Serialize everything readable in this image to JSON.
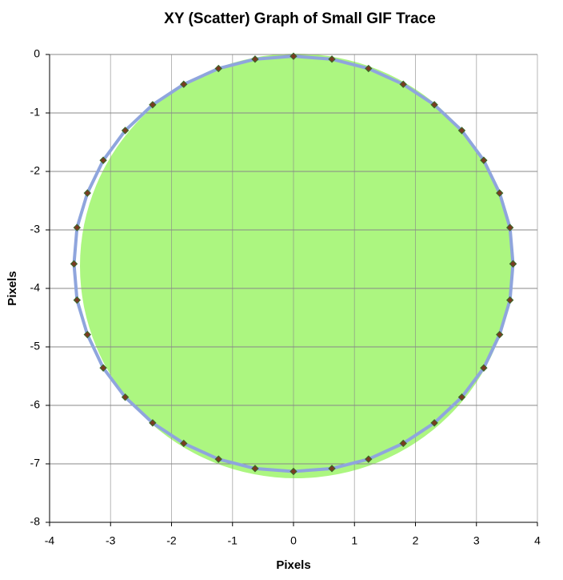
{
  "chart_data": {
    "type": "scatter",
    "title": "XY (Scatter) Graph of Small GIF Trace",
    "x_label": "Pixels",
    "y_label": "Pixels",
    "x": [
      3.6,
      3.55,
      3.38,
      3.12,
      2.76,
      2.31,
      1.8,
      1.23,
      0.63,
      0,
      -0.63,
      -1.23,
      -1.8,
      -2.31,
      -2.76,
      -3.12,
      -3.38,
      -3.55,
      -3.6,
      -3.55,
      -3.38,
      -3.12,
      -2.76,
      -2.31,
      -1.8,
      -1.23,
      -0.63,
      0,
      0.63,
      1.23,
      1.8,
      2.31,
      2.76,
      3.12,
      3.38,
      3.55,
      3.6
    ],
    "values": [
      -3.58,
      -2.96,
      -2.37,
      -1.81,
      -1.3,
      -0.86,
      -0.51,
      -0.24,
      -0.08,
      -0.03,
      -0.08,
      -0.24,
      -0.51,
      -0.86,
      -1.3,
      -1.81,
      -2.37,
      -2.96,
      -3.58,
      -4.2,
      -4.79,
      -5.36,
      -5.86,
      -6.3,
      -6.65,
      -6.92,
      -7.08,
      -7.13,
      -7.08,
      -6.92,
      -6.65,
      -6.3,
      -5.86,
      -5.36,
      -4.79,
      -4.2,
      -3.58
    ],
    "line_color": "#8fa5dd",
    "marker_color": "#7a3a22",
    "xlim": [
      -4,
      4
    ],
    "xticks": [
      -4,
      -3,
      -2,
      -1,
      0,
      1,
      2,
      3,
      4
    ],
    "ylim": [
      -8,
      0
    ],
    "yticks": [
      0,
      -1,
      -2,
      -3,
      -4,
      -5,
      -6,
      -7,
      -8
    ],
    "grid": true
  }
}
